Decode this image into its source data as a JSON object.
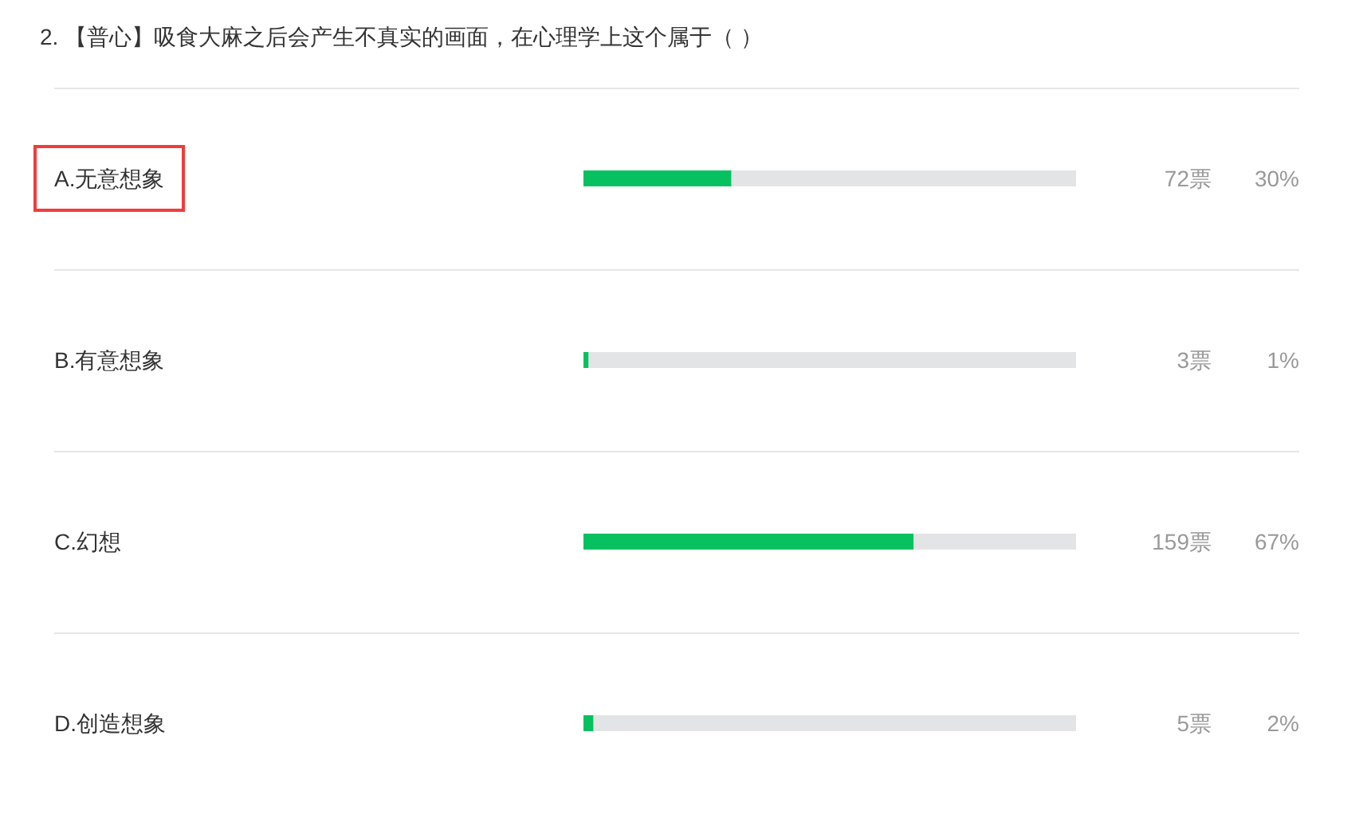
{
  "chart_data": {
    "type": "bar",
    "orientation": "horizontal",
    "title": "2. 【普心】吸食大麻之后会产生不真实的画面，在心理学上这个属于（ ）",
    "categories": [
      "A.无意想象",
      "B.有意想象",
      "C.幻想",
      "D.创造想象"
    ],
    "values": [
      30,
      1,
      67,
      2
    ],
    "value_labels": [
      "30%",
      "1%",
      "67%",
      "2%"
    ],
    "color": "#07c160",
    "xlim": [
      0,
      100
    ],
    "tick_labels": "y",
    "grid": "y",
    "annotations": [
      "72票",
      "3票",
      "159票",
      "5票"
    ]
  }
}
